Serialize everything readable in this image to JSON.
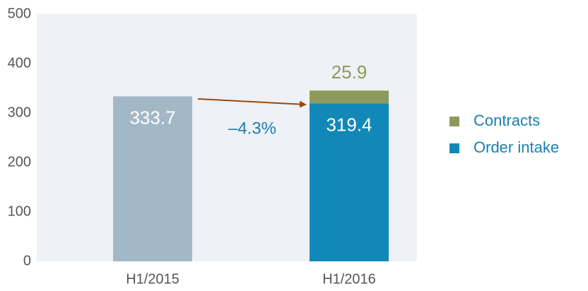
{
  "chart_data": {
    "type": "stacked_bar",
    "categories": [
      "H1/2015",
      "H1/2016"
    ],
    "series": [
      {
        "name": "Order intake",
        "color": "#1288b8",
        "colors": [
          "#a3b8c6",
          "#1288b8"
        ],
        "label_color": "#ffffff",
        "values": [
          333.7,
          319.4
        ]
      },
      {
        "name": "Contracts",
        "color": "#8e9a5b",
        "label_color": "#8e9a5b",
        "values": [
          null,
          25.9
        ]
      }
    ],
    "annotation": "–4.3%",
    "ylim": [
      0,
      500
    ],
    "yticks": [
      0,
      100,
      200,
      300,
      400,
      500
    ],
    "grid": false
  }
}
